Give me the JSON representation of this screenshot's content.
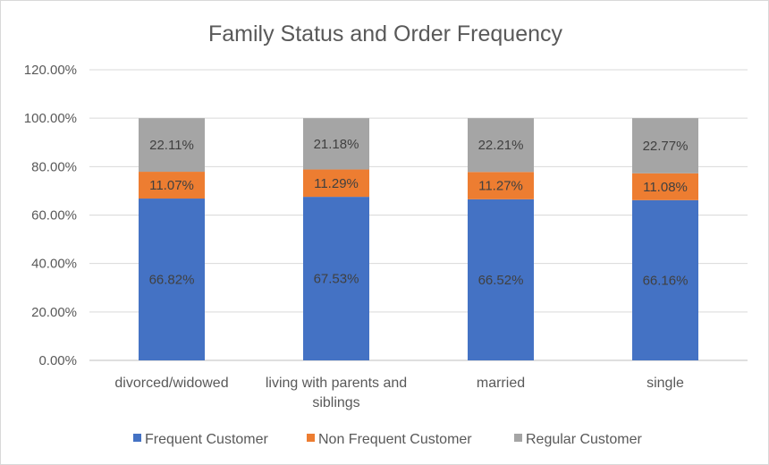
{
  "chart_data": {
    "type": "bar",
    "stacked": true,
    "title": "Family Status and Order Frequency",
    "categories": [
      [
        "divorced/widowed"
      ],
      [
        "living with parents and",
        "siblings"
      ],
      [
        "married"
      ],
      [
        "single"
      ]
    ],
    "series": [
      {
        "name": "Frequent Customer",
        "color": "#4472c4",
        "values": [
          66.82,
          67.53,
          66.52,
          66.16
        ],
        "labels": [
          "66.82%",
          "67.53%",
          "66.52%",
          "66.16%"
        ]
      },
      {
        "name": "Non Frequent Customer",
        "color": "#ed7d31",
        "values": [
          11.07,
          11.29,
          11.27,
          11.08
        ],
        "labels": [
          "11.07%",
          "11.29%",
          "11.27%",
          "11.08%"
        ]
      },
      {
        "name": "Regular Customer",
        "color": "#a5a5a5",
        "values": [
          22.11,
          21.18,
          22.21,
          22.77
        ],
        "labels": [
          "22.11%",
          "21.18%",
          "22.21%",
          "22.77%"
        ]
      }
    ],
    "ylim": [
      0,
      120
    ],
    "yticks": [
      0,
      20,
      40,
      60,
      80,
      100,
      120
    ],
    "ytick_labels": [
      "0.00%",
      "20.00%",
      "40.00%",
      "60.00%",
      "80.00%",
      "100.00%",
      "120.00%"
    ],
    "grid": true,
    "legend_position": "bottom"
  }
}
